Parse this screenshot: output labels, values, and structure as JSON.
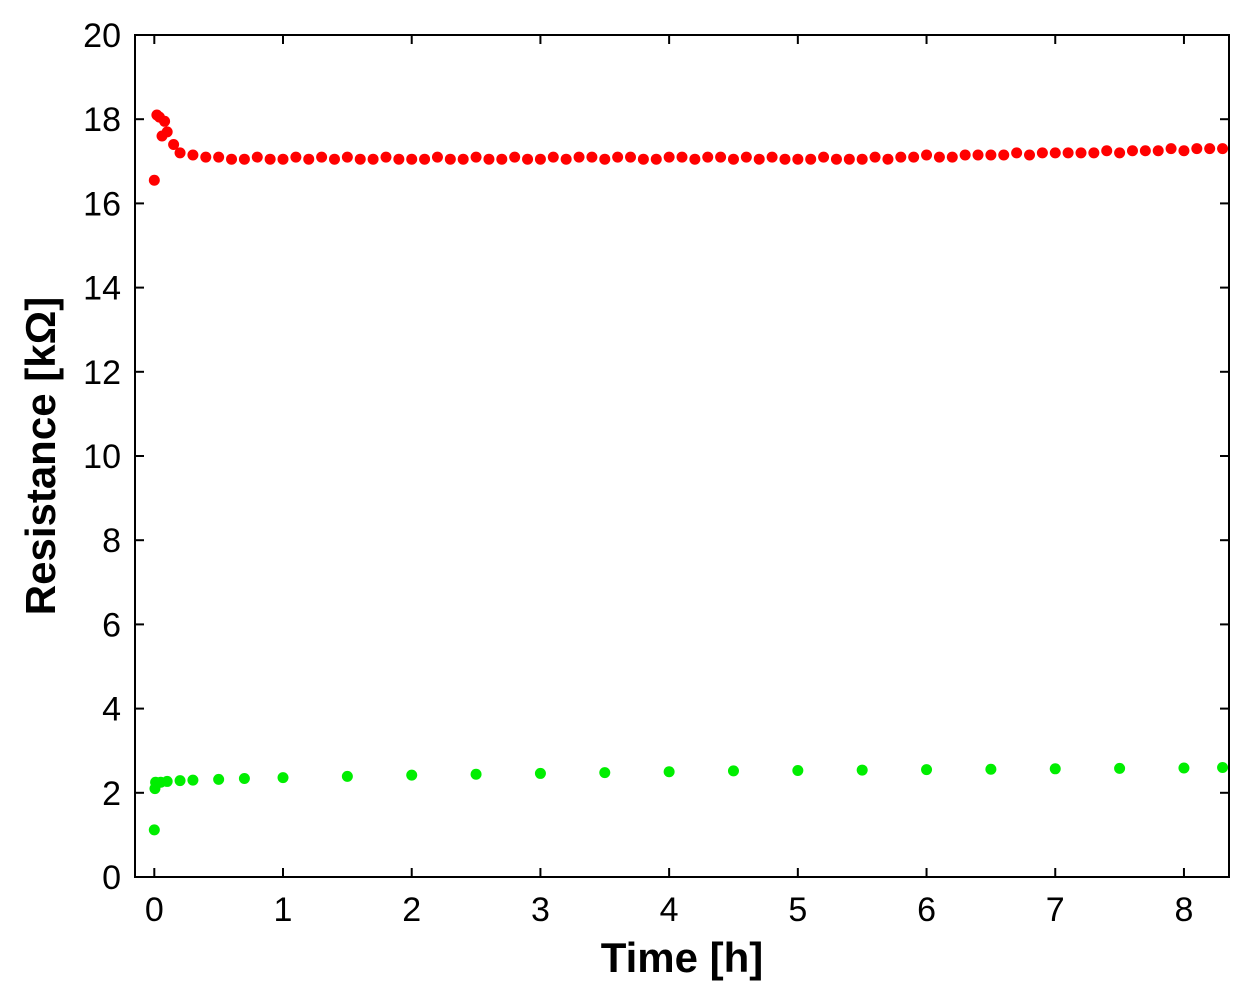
{
  "chart_data": {
    "type": "scatter",
    "xlabel": "Time [h]",
    "ylabel": "Resistance [kΩ]",
    "xlim": [
      -0.15,
      8.35
    ],
    "ylim": [
      0,
      20
    ],
    "xticks": [
      0,
      1,
      2,
      3,
      4,
      5,
      6,
      7,
      8
    ],
    "yticks": [
      0,
      2,
      4,
      6,
      8,
      10,
      12,
      14,
      16,
      18,
      20
    ],
    "grid": false,
    "legend": "none",
    "series": [
      {
        "color": "#ff0000",
        "x": [
          0.0,
          0.02,
          0.04,
          0.06,
          0.08,
          0.1,
          0.15,
          0.2,
          0.3,
          0.4,
          0.5,
          0.6,
          0.7,
          0.8,
          0.9,
          1.0,
          1.1,
          1.2,
          1.3,
          1.4,
          1.5,
          1.6,
          1.7,
          1.8,
          1.9,
          2.0,
          2.1,
          2.2,
          2.3,
          2.4,
          2.5,
          2.6,
          2.7,
          2.8,
          2.9,
          3.0,
          3.1,
          3.2,
          3.3,
          3.4,
          3.5,
          3.6,
          3.7,
          3.8,
          3.9,
          4.0,
          4.1,
          4.2,
          4.3,
          4.4,
          4.5,
          4.6,
          4.7,
          4.8,
          4.9,
          5.0,
          5.1,
          5.2,
          5.3,
          5.4,
          5.5,
          5.6,
          5.7,
          5.8,
          5.9,
          6.0,
          6.1,
          6.2,
          6.3,
          6.4,
          6.5,
          6.6,
          6.7,
          6.8,
          6.9,
          7.0,
          7.1,
          7.2,
          7.3,
          7.4,
          7.5,
          7.6,
          7.7,
          7.8,
          7.9,
          8.0,
          8.1,
          8.2,
          8.3
        ],
        "y": [
          16.55,
          18.1,
          18.05,
          17.6,
          17.95,
          17.7,
          17.4,
          17.2,
          17.15,
          17.1,
          17.1,
          17.05,
          17.05,
          17.1,
          17.05,
          17.05,
          17.1,
          17.05,
          17.1,
          17.05,
          17.1,
          17.05,
          17.05,
          17.1,
          17.05,
          17.05,
          17.05,
          17.1,
          17.05,
          17.05,
          17.1,
          17.05,
          17.05,
          17.1,
          17.05,
          17.05,
          17.1,
          17.05,
          17.1,
          17.1,
          17.05,
          17.1,
          17.1,
          17.05,
          17.05,
          17.1,
          17.1,
          17.05,
          17.1,
          17.1,
          17.05,
          17.1,
          17.05,
          17.1,
          17.05,
          17.05,
          17.05,
          17.1,
          17.05,
          17.05,
          17.05,
          17.1,
          17.05,
          17.1,
          17.1,
          17.15,
          17.1,
          17.1,
          17.15,
          17.15,
          17.15,
          17.15,
          17.2,
          17.15,
          17.2,
          17.2,
          17.2,
          17.2,
          17.2,
          17.25,
          17.2,
          17.25,
          17.25,
          17.25,
          17.3,
          17.25,
          17.3,
          17.3,
          17.3
        ]
      },
      {
        "color": "#00ee00",
        "x": [
          0.0,
          0.005,
          0.01,
          0.02,
          0.05,
          0.1,
          0.2,
          0.3,
          0.5,
          0.7,
          1.0,
          1.5,
          2.0,
          2.5,
          3.0,
          3.5,
          4.0,
          4.5,
          5.0,
          5.5,
          6.0,
          6.5,
          7.0,
          7.5,
          8.0,
          8.3
        ],
        "y": [
          1.12,
          2.1,
          2.25,
          2.22,
          2.25,
          2.27,
          2.29,
          2.3,
          2.32,
          2.34,
          2.36,
          2.39,
          2.42,
          2.44,
          2.46,
          2.48,
          2.5,
          2.52,
          2.53,
          2.54,
          2.55,
          2.56,
          2.57,
          2.58,
          2.59,
          2.6
        ]
      }
    ]
  }
}
